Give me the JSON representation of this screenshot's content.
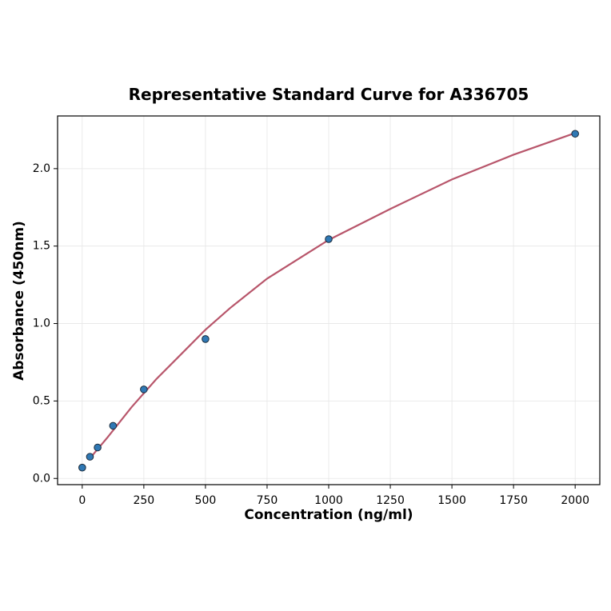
{
  "chart_data": {
    "type": "scatter",
    "title": "Representative Standard Curve for A336705",
    "x_label": "Concentration (ng/ml)",
    "y_label": "Absorbance (450nm)",
    "xlim": [
      -100,
      2100
    ],
    "ylim": [
      -0.04,
      2.34
    ],
    "xticks": [
      0,
      250,
      500,
      750,
      1000,
      1250,
      1500,
      1750,
      2000
    ],
    "yticks": [
      {
        "value": 0,
        "label": "0.0"
      },
      0.5,
      {
        "value": 1,
        "label": "1.0"
      },
      1.5,
      {
        "value": 2,
        "label": "2.0"
      }
    ],
    "grid": true,
    "series": [
      {
        "type": "line",
        "color": "#b8566b",
        "x": [
          31.25,
          100,
          200,
          300,
          400,
          500,
          600,
          750,
          1000,
          1250,
          1500,
          1750,
          2000
        ],
        "values": [
          0.13,
          0.26,
          0.46,
          0.64,
          0.8,
          0.96,
          1.1,
          1.29,
          1.54,
          1.74,
          1.93,
          2.09,
          2.23
        ]
      },
      {
        "type": "scatter",
        "color": "#2f78b4",
        "x": [
          0,
          31.25,
          62.5,
          125,
          250,
          500,
          1000,
          2000
        ],
        "values": [
          0.07,
          0.14,
          0.2,
          0.34,
          0.575,
          0.9,
          1.545,
          2.225
        ]
      }
    ]
  }
}
